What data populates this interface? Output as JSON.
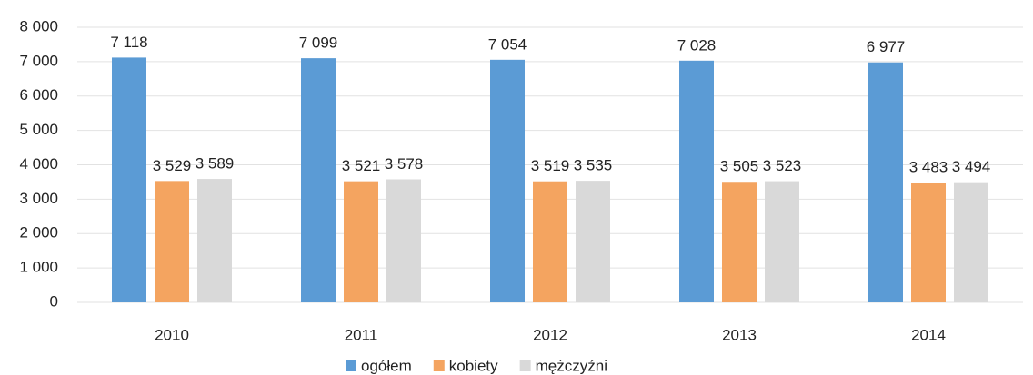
{
  "chart_data": {
    "type": "bar",
    "categories": [
      "2010",
      "2011",
      "2012",
      "2013",
      "2014"
    ],
    "series": [
      {
        "name": "ogółem",
        "color": "#5b9bd5",
        "values": [
          7118,
          7099,
          7054,
          7028,
          6977
        ],
        "value_labels": [
          "7 118",
          "7 099",
          "7 054",
          "7 028",
          "6 977"
        ]
      },
      {
        "name": "kobiety",
        "color": "#f4a460",
        "values": [
          3529,
          3521,
          3519,
          3505,
          3483
        ],
        "value_labels": [
          "3 529",
          "3 521",
          "3 519",
          "3 505",
          "3 483"
        ]
      },
      {
        "name": "mężczyźni",
        "color": "#d9d9d9",
        "values": [
          3589,
          3578,
          3535,
          3523,
          3494
        ],
        "value_labels": [
          "3 589",
          "3 578",
          "3 535",
          "3 523",
          "3 494"
        ]
      }
    ],
    "ylim": [
      0,
      8000
    ],
    "yticks": [
      0,
      {
        "value": 1000,
        "label": "1 000"
      },
      {
        "value": 2000,
        "label": "2 000"
      },
      {
        "value": 3000,
        "label": "3 000"
      },
      {
        "value": 4000,
        "label": "4 000"
      },
      {
        "value": 5000,
        "label": "5 000"
      },
      {
        "value": 6000,
        "label": "6 000"
      },
      {
        "value": 7000,
        "label": "7 000"
      },
      {
        "value": 8000,
        "label": "8 000"
      }
    ],
    "grid": true,
    "legend": "bottom"
  }
}
